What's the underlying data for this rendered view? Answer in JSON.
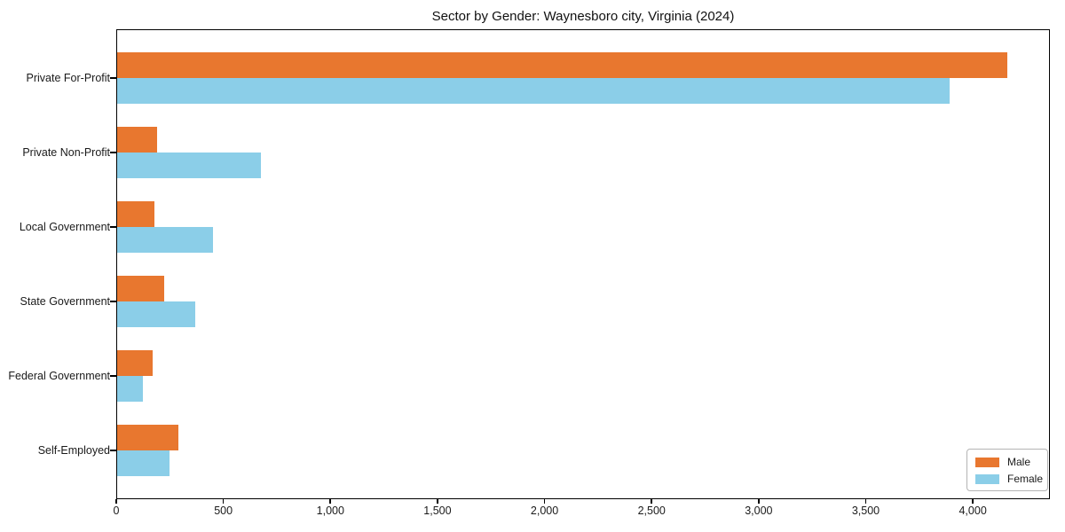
{
  "chart_data": {
    "type": "bar",
    "orientation": "horizontal",
    "title": "Sector by Gender: Waynesboro city, Virginia (2024)",
    "xlabel": "",
    "ylabel": "",
    "categories": [
      "Private For-Profit",
      "Private Non-Profit",
      "Local Government",
      "State Government",
      "Federal Government",
      "Self-Employed"
    ],
    "series": [
      {
        "name": "Male",
        "color": "#E8772F",
        "values": [
          4160,
          190,
          180,
          225,
          170,
          290
        ]
      },
      {
        "name": "Female",
        "color": "#8BCEE8",
        "values": [
          3890,
          675,
          450,
          370,
          125,
          250
        ]
      }
    ],
    "xlim": [
      0,
      4360
    ],
    "xticks": [
      0,
      500,
      1000,
      1500,
      2000,
      2500,
      3000,
      3500,
      4000
    ],
    "xtick_labels": [
      "0",
      "500",
      "1,000",
      "1,500",
      "2,000",
      "2,500",
      "3,000",
      "3,500",
      "4,000"
    ],
    "grid": false,
    "legend": {
      "position": "lower right"
    }
  }
}
